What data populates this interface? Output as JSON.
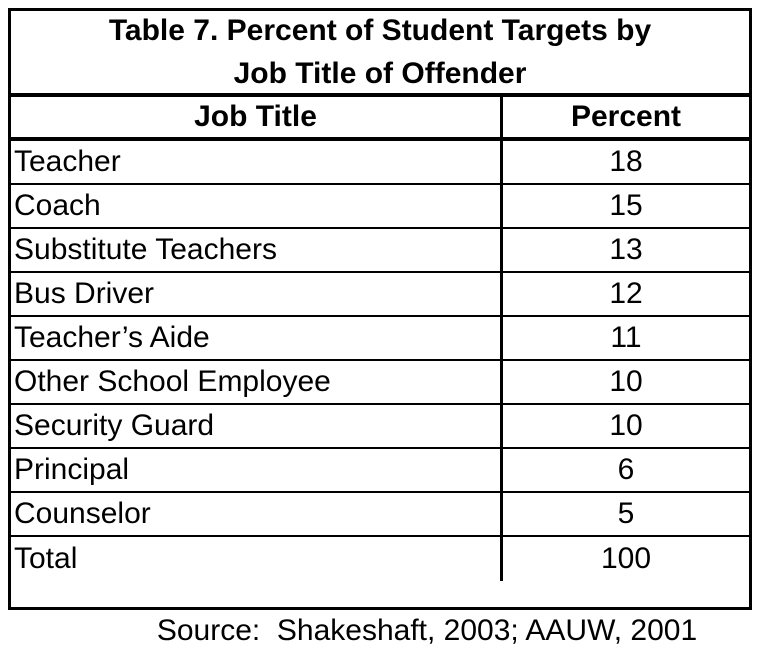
{
  "chart_data": {
    "type": "table",
    "title": "Table 7. Percent of Student Targets by Job Title of Offender",
    "columns": [
      "Job Title",
      "Percent"
    ],
    "rows": [
      [
        "Teacher",
        "18"
      ],
      [
        "Coach",
        "15"
      ],
      [
        "Substitute Teachers",
        "13"
      ],
      [
        "Bus Driver",
        "12"
      ],
      [
        "Teacher’s Aide",
        "11"
      ],
      [
        "Other School Employee",
        "10"
      ],
      [
        "Security Guard",
        "10"
      ],
      [
        "Principal",
        "6"
      ],
      [
        "Counselor",
        "5"
      ],
      [
        "Total",
        "100"
      ]
    ],
    "source": "Source:  Shakeshaft, 2003; AAUW, 2001"
  },
  "table": {
    "title_line1": "Table 7. Percent of Student Targets by",
    "title_line2": "Job Title of Offender",
    "header": {
      "job_title": "Job Title",
      "percent": "Percent"
    }
  },
  "source_text": "Source:  Shakeshaft, 2003; AAUW, 2001",
  "colors": {
    "border": "#000000",
    "text": "#000000",
    "background": "#ffffff"
  }
}
